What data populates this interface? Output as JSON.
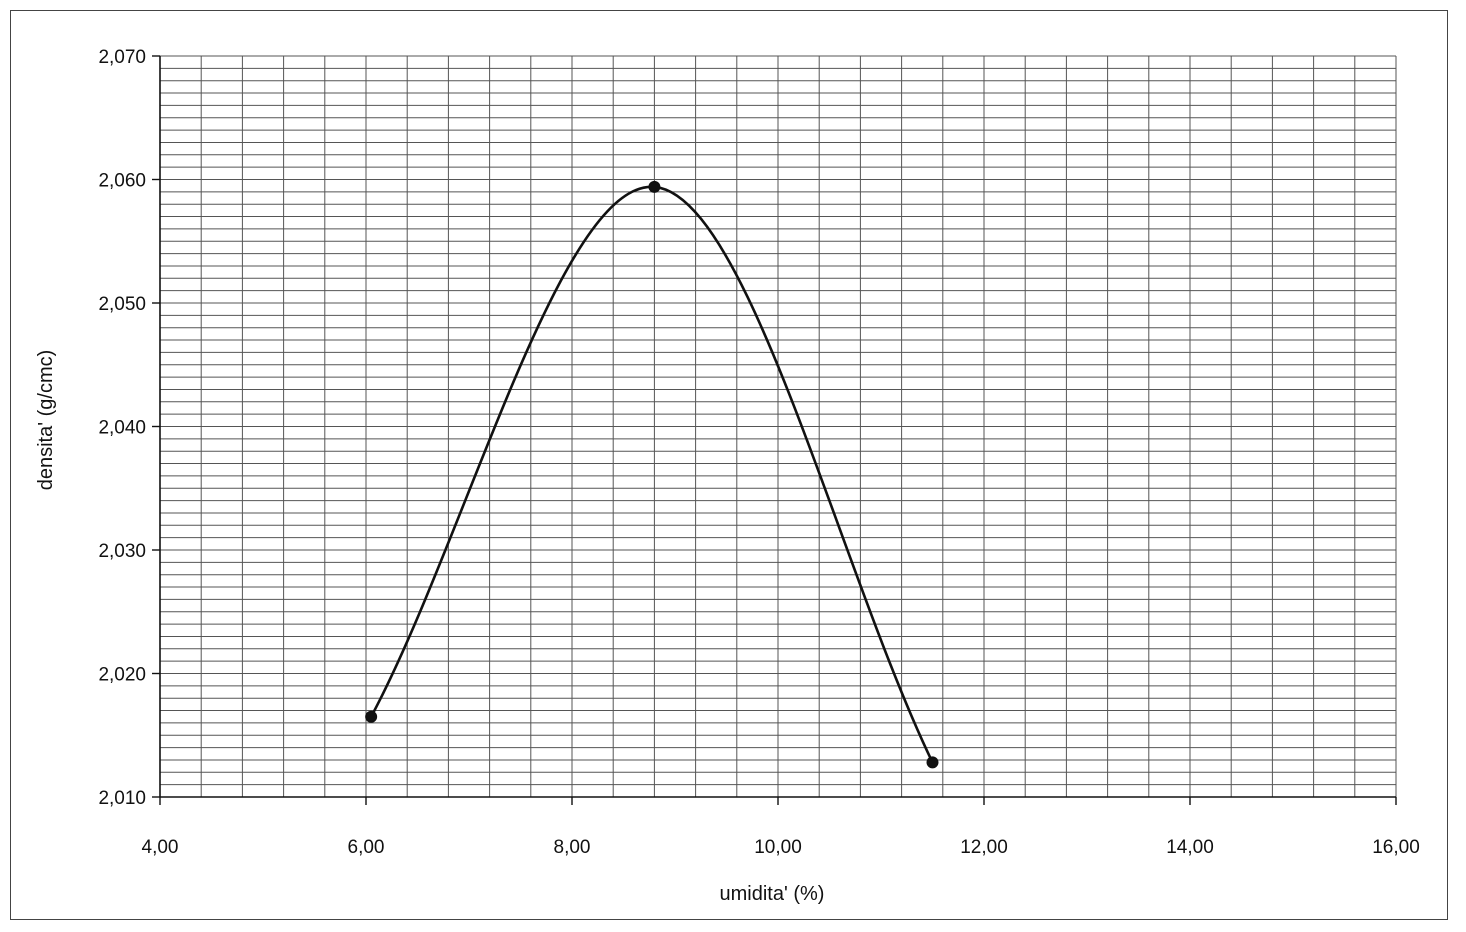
{
  "chart_data": {
    "type": "line",
    "title": "",
    "xlabel": "umidita' (%)",
    "ylabel": "densita' (g/cmc)",
    "xlim": [
      4,
      16
    ],
    "ylim": [
      2.01,
      2.07
    ],
    "x_ticks": [
      "4,00",
      "6,00",
      "8,00",
      "10,00",
      "12,00",
      "14,00",
      "16,00"
    ],
    "y_ticks": [
      "2,010",
      "2,020",
      "2,030",
      "2,040",
      "2,050",
      "2,060",
      "2,070"
    ],
    "grid": true,
    "legend": "none",
    "series": [
      {
        "x": [
          6.05,
          8.8,
          11.5
        ],
        "y": [
          2.0165,
          2.0594,
          2.0128
        ],
        "smooth": true
      }
    ],
    "colors": {
      "line": "#111111",
      "grid": "#555555",
      "marker": "#111111"
    }
  }
}
